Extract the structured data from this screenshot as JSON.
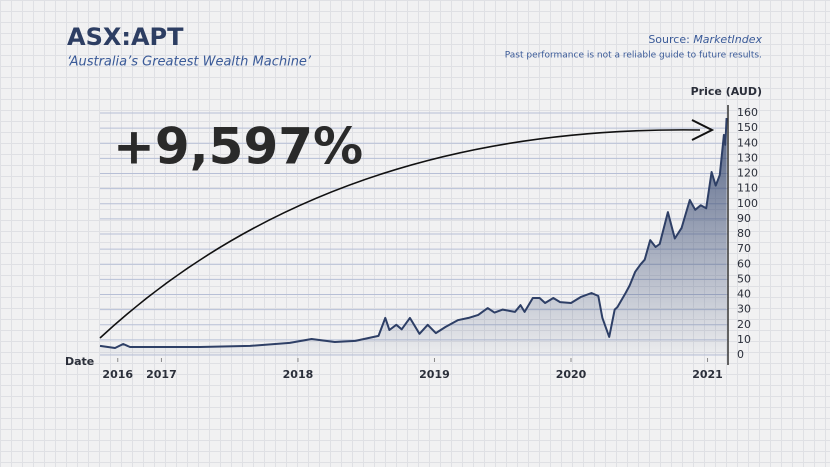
{
  "chart_data": {
    "type": "line",
    "title": "ASX:APT",
    "subtitle": "‘Australia’s Greatest Wealth Machine’",
    "source_label": "Source:",
    "source": "MarketIndex",
    "disclaimer": "Past performance is not a reliable guide to future results.",
    "annotation": "+9,597%",
    "x_label": "Date",
    "y_label": "Price (AUD)",
    "x": [
      2016.55,
      2016.66,
      2016.72,
      2016.77,
      2017.28,
      2017.65,
      2017.94,
      2018.1,
      2018.27,
      2018.42,
      2018.59,
      2018.64,
      2018.67,
      2018.72,
      2018.76,
      2018.82,
      2018.89,
      2018.95,
      2019.01,
      2019.08,
      2019.17,
      2019.25,
      2019.32,
      2019.39,
      2019.44,
      2019.5,
      2019.59,
      2019.63,
      2019.66,
      2019.72,
      2019.77,
      2019.81,
      2019.87,
      2019.92,
      2020.0,
      2020.07,
      2020.15,
      2020.2,
      2020.23,
      2020.28,
      2020.32,
      2020.34,
      2020.4,
      2020.43,
      2020.47,
      2020.51,
      2020.54,
      2020.58,
      2020.62,
      2020.65,
      2020.71,
      2020.76,
      2020.81,
      2020.87,
      2020.91,
      2020.95,
      2020.99,
      2021.03,
      2021.06,
      2021.09,
      2021.12,
      2021.13,
      2021.14
    ],
    "series": [
      {
        "name": "APT",
        "color": "#2e3f66",
        "values": [
          6,
          4.6,
          7.3,
          5.3,
          5.3,
          6,
          8,
          10.6,
          8.6,
          9.3,
          12.6,
          24.5,
          16.5,
          20,
          17,
          24.5,
          14,
          20,
          14.5,
          18.5,
          23,
          24.5,
          26.5,
          31,
          28,
          30,
          28.5,
          33,
          28.5,
          37.7,
          37.7,
          34.4,
          37.7,
          35,
          34.4,
          38.3,
          41,
          39,
          24.5,
          12,
          30,
          31.7,
          41,
          46,
          55,
          60,
          63,
          76,
          71.4,
          73.4,
          94.5,
          77,
          84,
          102.5,
          96,
          99,
          97,
          121,
          112,
          119,
          145.5,
          139,
          156.7
        ]
      }
    ],
    "xlim": [
      2016.55,
      2021.15
    ],
    "xticks": [
      {
        "value": 2016.68,
        "label": "2016"
      },
      2017,
      2018,
      2019,
      2020,
      2021
    ],
    "ylim": [
      0,
      160
    ],
    "yticks": [
      0,
      10,
      20,
      30,
      40,
      50,
      60,
      70,
      80,
      90,
      100,
      110,
      120,
      130,
      140,
      150,
      160
    ],
    "grid": true
  }
}
